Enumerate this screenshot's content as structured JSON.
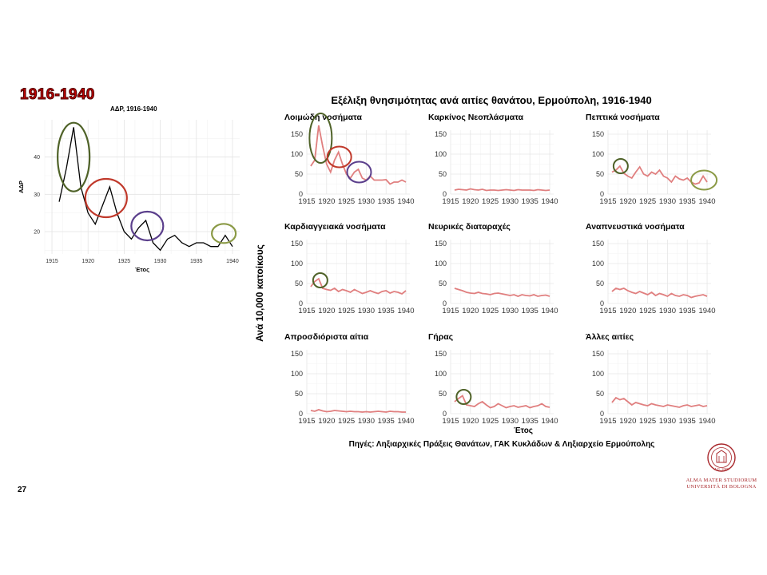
{
  "slide": {
    "title": "1916-1940",
    "page_number": "27",
    "logo_lines": [
      "ALMA MATER STUDIORUM",
      "UNIVERSITÀ DI BOLOGNA"
    ],
    "logo_seal_text": "A.D. 1088"
  },
  "chart_data": [
    {
      "type": "line",
      "title": "ΑΔΡ, 1916-1940",
      "xlabel": "Έτος",
      "ylabel": "ΑΔΡ",
      "xlim": [
        1914,
        1941
      ],
      "ylim": [
        14,
        50
      ],
      "x_ticks": [
        1915,
        1920,
        1925,
        1930,
        1935,
        1940
      ],
      "y_ticks": [
        20,
        30,
        40
      ],
      "grid": true,
      "line_color": "#000000",
      "series": [
        {
          "x": [
            1916,
            1917,
            1918,
            1919,
            1920,
            1921,
            1922,
            1923,
            1924,
            1925,
            1926,
            1927,
            1928,
            1929,
            1930,
            1931,
            1932,
            1933,
            1934,
            1935,
            1936,
            1937,
            1938,
            1939,
            1940
          ],
          "values": [
            28,
            37,
            48,
            32,
            25,
            22,
            27,
            32,
            25,
            20,
            18,
            21,
            23,
            17,
            15,
            18,
            19,
            17,
            16,
            17,
            17,
            16,
            16,
            19,
            16
          ]
        }
      ],
      "highlights": [
        {
          "x": 1918,
          "y": 40,
          "color": "#4f6228"
        },
        {
          "x": 1922.5,
          "y": 29,
          "color": "#c0392b"
        },
        {
          "x": 1928.2,
          "y": 21.5,
          "color": "#5b3f8c"
        },
        {
          "x": 1938.8,
          "y": 19.5,
          "color": "#8b9a46"
        }
      ]
    },
    {
      "type": "line",
      "title": "Εξέλιξη θνησιμότητας ανά αιτίες θανάτου, Ερμούπολη, 1916-1940",
      "xlabel": "Έτος",
      "ylabel": "Ανά 10,000 κατοίκους",
      "source": "Πηγές: Ληξιαρχικές Πράξεις Θανάτων, ΓΑΚ Κυκλάδων & Ληξιαρχείο Ερμούπολης",
      "xlim": [
        1915,
        1941
      ],
      "ylim": [
        0,
        160
      ],
      "x_ticks": [
        1915,
        1920,
        1925,
        1930,
        1935,
        1940
      ],
      "y_ticks": [
        0,
        50,
        100,
        150
      ],
      "grid": true,
      "line_color": "#e07f7f",
      "x": [
        1916,
        1917,
        1918,
        1919,
        1920,
        1921,
        1922,
        1923,
        1924,
        1925,
        1926,
        1927,
        1928,
        1929,
        1930,
        1931,
        1932,
        1933,
        1934,
        1935,
        1936,
        1937,
        1938,
        1939,
        1940
      ],
      "panels": [
        {
          "title": "Λοιμώδη νοσήματα",
          "values": [
            70,
            85,
            172,
            120,
            75,
            55,
            85,
            105,
            75,
            50,
            40,
            55,
            62,
            40,
            35,
            45,
            35,
            35,
            35,
            36,
            25,
            30,
            30,
            35,
            30
          ],
          "highlights": [
            {
              "x": 1918.5,
              "y": 140,
              "color": "#4f6228"
            },
            {
              "x": 1923.2,
              "y": 93,
              "color": "#c0392b"
            },
            {
              "x": 1928.2,
              "y": 55,
              "color": "#5b3f8c"
            }
          ]
        },
        {
          "title": "Καρκίνος Νεοπλάσματα",
          "values": [
            10,
            12,
            11,
            10,
            13,
            11,
            10,
            12,
            9,
            10,
            10,
            9,
            10,
            11,
            10,
            9,
            11,
            10,
            10,
            10,
            9,
            11,
            10,
            9,
            10
          ],
          "highlights": []
        },
        {
          "title": "Πεπτικά νοσήματα",
          "values": [
            55,
            60,
            70,
            52,
            45,
            40,
            55,
            68,
            50,
            45,
            55,
            50,
            60,
            45,
            40,
            30,
            45,
            38,
            35,
            40,
            30,
            25,
            28,
            45,
            30
          ],
          "highlights": [
            {
              "x": 1918.2,
              "y": 70,
              "color": "#4f6228"
            },
            {
              "x": 1939.2,
              "y": 35,
              "color": "#8b9a46"
            }
          ]
        },
        {
          "title": "Καρδιαγγειακά νοσήματα",
          "values": [
            42,
            55,
            62,
            38,
            35,
            33,
            38,
            30,
            35,
            32,
            28,
            35,
            30,
            25,
            28,
            32,
            28,
            25,
            30,
            32,
            26,
            30,
            28,
            24,
            32
          ],
          "highlights": [
            {
              "x": 1918.4,
              "y": 58,
              "color": "#4f6228"
            }
          ]
        },
        {
          "title": "Νευρικές διαταραχές",
          "values": [
            38,
            35,
            32,
            28,
            26,
            25,
            28,
            25,
            24,
            22,
            25,
            26,
            24,
            22,
            20,
            22,
            18,
            22,
            20,
            19,
            22,
            18,
            20,
            21,
            18
          ],
          "highlights": []
        },
        {
          "title": "Αναπνευστικά νοσήματα",
          "values": [
            30,
            38,
            35,
            38,
            32,
            28,
            25,
            30,
            26,
            22,
            28,
            20,
            25,
            22,
            18,
            25,
            20,
            18,
            22,
            20,
            15,
            18,
            20,
            22,
            18
          ],
          "highlights": []
        },
        {
          "title": "Απροσδιόριστα αίτια",
          "values": [
            8,
            6,
            10,
            7,
            5,
            6,
            8,
            7,
            6,
            5,
            6,
            5,
            5,
            4,
            5,
            4,
            5,
            6,
            5,
            4,
            6,
            5,
            5,
            4,
            4
          ],
          "highlights": []
        },
        {
          "title": "Γήρας",
          "values": [
            30,
            38,
            45,
            22,
            20,
            18,
            25,
            30,
            22,
            15,
            18,
            25,
            20,
            15,
            18,
            20,
            16,
            18,
            20,
            15,
            18,
            20,
            25,
            18,
            16
          ],
          "highlights": [
            {
              "x": 1918.3,
              "y": 42,
              "color": "#4f6228"
            }
          ]
        },
        {
          "title": "Άλλες αιτίες",
          "values": [
            28,
            40,
            35,
            38,
            30,
            22,
            28,
            25,
            22,
            20,
            25,
            22,
            20,
            18,
            22,
            20,
            18,
            16,
            20,
            22,
            18,
            20,
            22,
            18,
            20
          ],
          "highlights": []
        }
      ]
    }
  ]
}
